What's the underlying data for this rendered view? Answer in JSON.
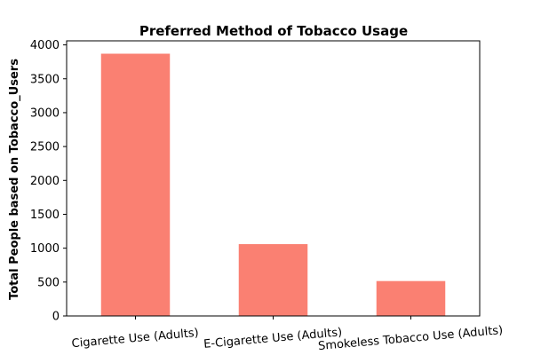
{
  "chart_data": {
    "type": "bar",
    "title": "Preferred Method of Tobacco Usage",
    "xlabel": "",
    "ylabel": "Total People based on Tobacco_Users",
    "categories": [
      "Cigarette Use (Adults)",
      "E-Cigarette Use (Adults)",
      "Smokeless Tobacco Use (Adults)"
    ],
    "values": [
      3870,
      1060,
      515
    ],
    "ylim": [
      0,
      4060
    ],
    "yticks": [
      0,
      500,
      1000,
      1500,
      2000,
      2500,
      3000,
      3500,
      4000
    ],
    "bar_color": "#FA8072",
    "grid": false,
    "legend": "none"
  }
}
